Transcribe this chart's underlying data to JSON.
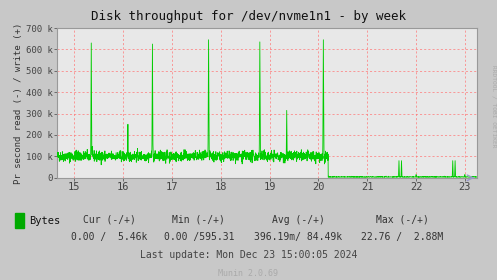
{
  "title": "Disk throughput for /dev/nvme1n1 - by week",
  "ylabel": "Pr second read (-) / write (+)",
  "xlabel_ticks": [
    15,
    16,
    17,
    18,
    19,
    20,
    21,
    22,
    23
  ],
  "xlim": [
    14.65,
    23.25
  ],
  "ylim": [
    0,
    700000
  ],
  "yticks": [
    0,
    100000,
    200000,
    300000,
    400000,
    500000,
    600000,
    700000
  ],
  "ytick_labels": [
    "0",
    "100 k",
    "200 k",
    "300 k",
    "400 k",
    "500 k",
    "600 k",
    "700 k"
  ],
  "bg_color": "#c8c8c8",
  "plot_bg_color": "#e8e8e8",
  "line_color": "#00cc00",
  "right_label": "RRDTOOL / TOBI OETIKER",
  "legend_label": "Bytes",
  "legend_color": "#00aa00",
  "footer_cur": "Cur (-/+)",
  "footer_min": "Min (-/+)",
  "footer_avg": "Avg (-/+)",
  "footer_max": "Max (-/+)",
  "footer_bytes_cur": "0.00 /  5.46k",
  "footer_bytes_min": "0.00 /595.31",
  "footer_bytes_avg": "396.19m/ 84.49k",
  "footer_bytes_max": "22.76 /  2.88M",
  "footer_lastupdate": "Last update: Mon Dec 23 15:00:05 2024",
  "footer_munin": "Munin 2.0.69",
  "baseline": 100000,
  "noise_amp": 12000,
  "spike_positions": [
    15.35,
    16.1,
    16.6,
    17.75,
    18.8,
    19.35,
    20.1
  ],
  "spike_heights": [
    630000,
    250000,
    625000,
    645000,
    635000,
    315000,
    645000
  ],
  "drop_start": 20.2,
  "drop_baseline": 3000,
  "drop_spikes": [
    [
      21.65,
      80000
    ],
    [
      21.7,
      80000
    ],
    [
      22.0,
      15000
    ],
    [
      22.75,
      80000
    ],
    [
      22.8,
      80000
    ],
    [
      23.0,
      15000
    ]
  ]
}
